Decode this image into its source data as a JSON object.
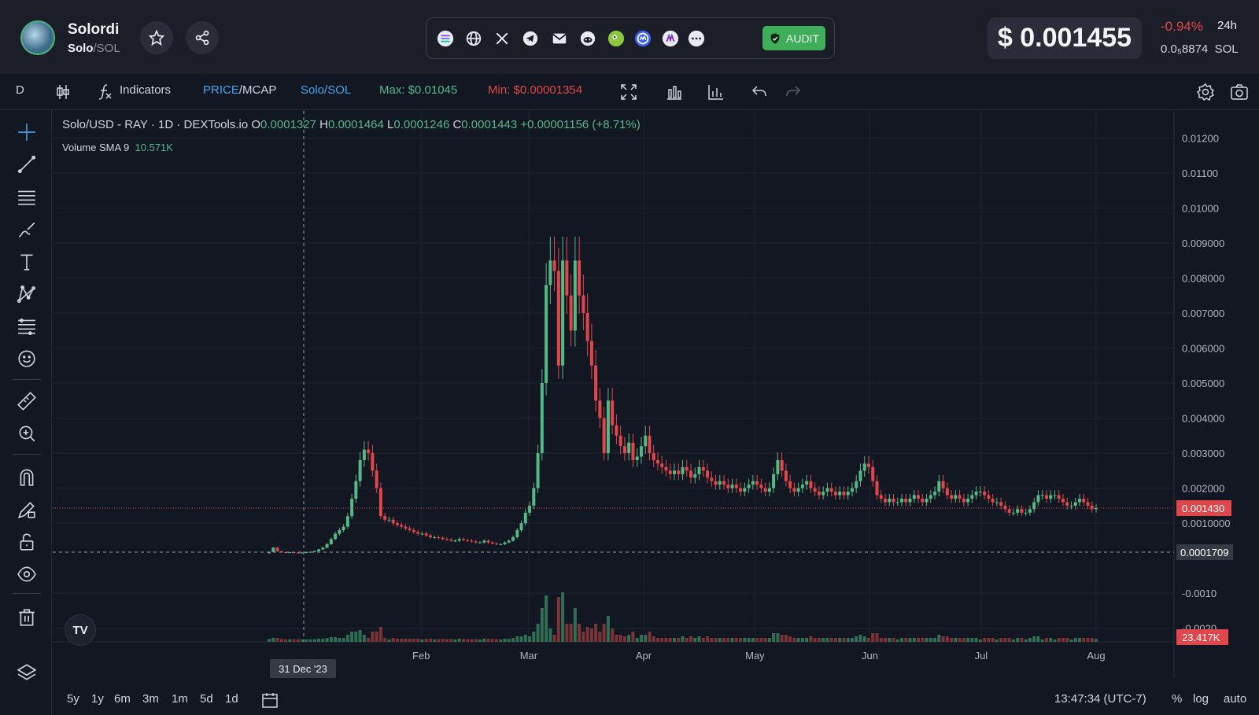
{
  "header": {
    "token_name": "Solordi",
    "token_symbol": "Solo",
    "pair_separator": "/",
    "quote_symbol": "SOL",
    "audit_label": "AUDIT",
    "price": "$ 0.001455",
    "change_pct": "-0.94%",
    "change_period": "24h",
    "sol_price": "0.0₅8874",
    "sol_label": "SOL",
    "social_icons": [
      "solana-icon",
      "globe-icon",
      "x-icon",
      "telegram-icon",
      "mail-icon",
      "reddit-icon",
      "coingecko-icon",
      "coinmarketcap-icon",
      "dextools-icon",
      "more-icon"
    ],
    "colors": {
      "accent_red": "#e0474c",
      "audit_green": "#3fae5b",
      "up": "#53b987",
      "down": "#e0474c"
    }
  },
  "toolbar": {
    "interval": "D",
    "indicators_label": "Indicators",
    "price_label": "PRICE",
    "mcap_sep": "/",
    "mcap_label": "MCAP",
    "pair_toggle": "Solo/SOL",
    "max_label": "Max: $0.01045",
    "min_label": "Min: $0.00001354"
  },
  "legend": {
    "title": "Solo/USD - RAY · 1D · DEXTools.io",
    "o_label": "O",
    "o_val": "0.0001327",
    "h_label": "H",
    "h_val": "0.0001464",
    "l_label": "L",
    "l_val": "0.0001246",
    "c_label": "C",
    "c_val": "0.0001443",
    "change": "+0.00001156 (+8.71%)",
    "volume_label": "Volume SMA 9",
    "volume_val": "10.571K"
  },
  "price_axis": {
    "ticks": [
      "0.01200",
      "0.01100",
      "0.01000",
      "0.009000",
      "0.008000",
      "0.007000",
      "0.006000",
      "0.005000",
      "0.004000",
      "0.003000",
      "0.002000",
      "0.0010000",
      "-0.0010",
      "-0.0020"
    ],
    "current_price_tag": "0.001430",
    "crosshair_tag": "0.0001709",
    "volume_tag": "23.417K"
  },
  "time_axis": {
    "labels": [
      "Feb",
      "Mar",
      "Apr",
      "May",
      "Jun",
      "Jul",
      "Aug"
    ],
    "crosshair_date": "31 Dec '23"
  },
  "bottom": {
    "ranges": [
      "5y",
      "1y",
      "6m",
      "3m",
      "1m",
      "5d",
      "1d"
    ],
    "time": "13:47:34 (UTC-7)",
    "pct_label": "%",
    "log_label": "log",
    "auto_label": "auto"
  },
  "chart_data": {
    "type": "candlestick",
    "title": "Solo/USD - RAY · 1D · DEXTools.io",
    "ylim": [
      -0.0025,
      0.0125
    ],
    "x_start": "2023-12-22",
    "x_end": "2024-08-01",
    "close_series": [
      0.00018,
      0.0003,
      0.0002,
      0.00017,
      0.00016,
      0.00017,
      0.00016,
      0.00015,
      0.00016,
      0.00017,
      0.00018,
      0.0002,
      0.00025,
      0.0003,
      0.0004,
      0.00055,
      0.0007,
      0.0008,
      0.0009,
      0.0012,
      0.0017,
      0.0022,
      0.0028,
      0.0031,
      0.003,
      0.0025,
      0.002,
      0.0012,
      0.0011,
      0.0011,
      0.001,
      0.00095,
      0.0009,
      0.00085,
      0.0008,
      0.00075,
      0.0007,
      0.0007,
      0.00065,
      0.0006,
      0.0006,
      0.00058,
      0.00055,
      0.00053,
      0.0005,
      0.0005,
      0.00055,
      0.00052,
      0.0005,
      0.00048,
      0.00045,
      0.00045,
      0.0005,
      0.00045,
      0.00042,
      0.0004,
      0.0004,
      0.00045,
      0.0005,
      0.0006,
      0.0008,
      0.001,
      0.0013,
      0.0015,
      0.002,
      0.003,
      0.005,
      0.0078,
      0.0085,
      0.0082,
      0.0055,
      0.0085,
      0.0075,
      0.0065,
      0.0085,
      0.0075,
      0.007,
      0.0062,
      0.0055,
      0.0045,
      0.004,
      0.003,
      0.0045,
      0.0038,
      0.0035,
      0.0032,
      0.003,
      0.0033,
      0.0028,
      0.0029,
      0.0032,
      0.0035,
      0.003,
      0.0028,
      0.0027,
      0.0026,
      0.0025,
      0.0024,
      0.0025,
      0.0024,
      0.0026,
      0.0025,
      0.0023,
      0.0024,
      0.0026,
      0.0025,
      0.0023,
      0.0022,
      0.0021,
      0.0022,
      0.0021,
      0.002,
      0.0021,
      0.002,
      0.0019,
      0.002,
      0.0021,
      0.0022,
      0.0021,
      0.002,
      0.0019,
      0.002,
      0.0024,
      0.0028,
      0.0025,
      0.0022,
      0.002,
      0.0019,
      0.002,
      0.0021,
      0.0022,
      0.002,
      0.0019,
      0.0018,
      0.0019,
      0.002,
      0.0019,
      0.0018,
      0.0019,
      0.0018,
      0.0019,
      0.002,
      0.0022,
      0.0025,
      0.0027,
      0.0026,
      0.0022,
      0.0018,
      0.0017,
      0.0016,
      0.0017,
      0.0016,
      0.0016,
      0.0017,
      0.0016,
      0.0017,
      0.0018,
      0.0017,
      0.0016,
      0.0017,
      0.0018,
      0.0019,
      0.0022,
      0.002,
      0.0018,
      0.0017,
      0.0018,
      0.0017,
      0.0016,
      0.0017,
      0.0018,
      0.0019,
      0.0019,
      0.0018,
      0.0017,
      0.0016,
      0.0016,
      0.0015,
      0.0014,
      0.0013,
      0.0013,
      0.0014,
      0.0013,
      0.0013,
      0.0014,
      0.0016,
      0.0018,
      0.0018,
      0.0017,
      0.0018,
      0.0018,
      0.0017,
      0.0016,
      0.0015,
      0.0015,
      0.0016,
      0.0017,
      0.0016,
      0.0015,
      0.0014,
      0.00143
    ]
  }
}
